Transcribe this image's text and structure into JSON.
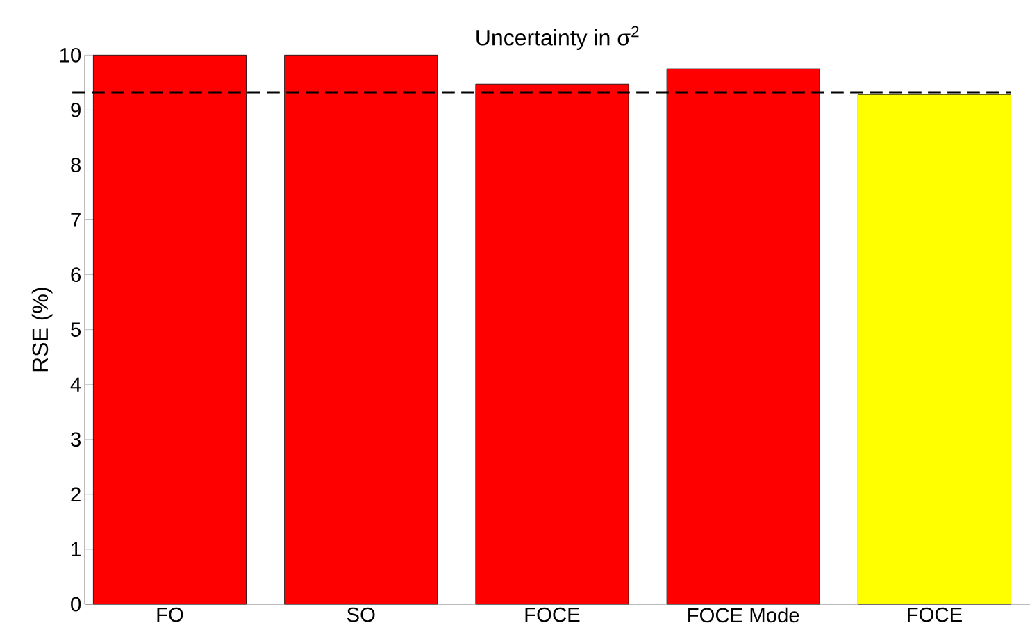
{
  "chart_data": {
    "type": "bar",
    "title": "Uncertainty in σ$^{2}$",
    "ylabel": "RSE (%)",
    "categories": [
      "FO",
      "SO",
      "FOCE",
      "FOCE Mode",
      "FOCE"
    ],
    "values": [
      10.0,
      10.0,
      9.47,
      9.75,
      9.28
    ],
    "colors": [
      "#ff0000",
      "#ff0000",
      "#ff0000",
      "#ff0000",
      "#ffff00"
    ],
    "ylim": [
      0,
      10
    ],
    "yticks": [
      0,
      1,
      2,
      3,
      4,
      5,
      6,
      7,
      8,
      9,
      10
    ],
    "ref_lines": [
      {
        "axis": "y",
        "value": 9.32,
        "color": "#000000",
        "line_style": "dashed"
      }
    ],
    "grid": false
  }
}
